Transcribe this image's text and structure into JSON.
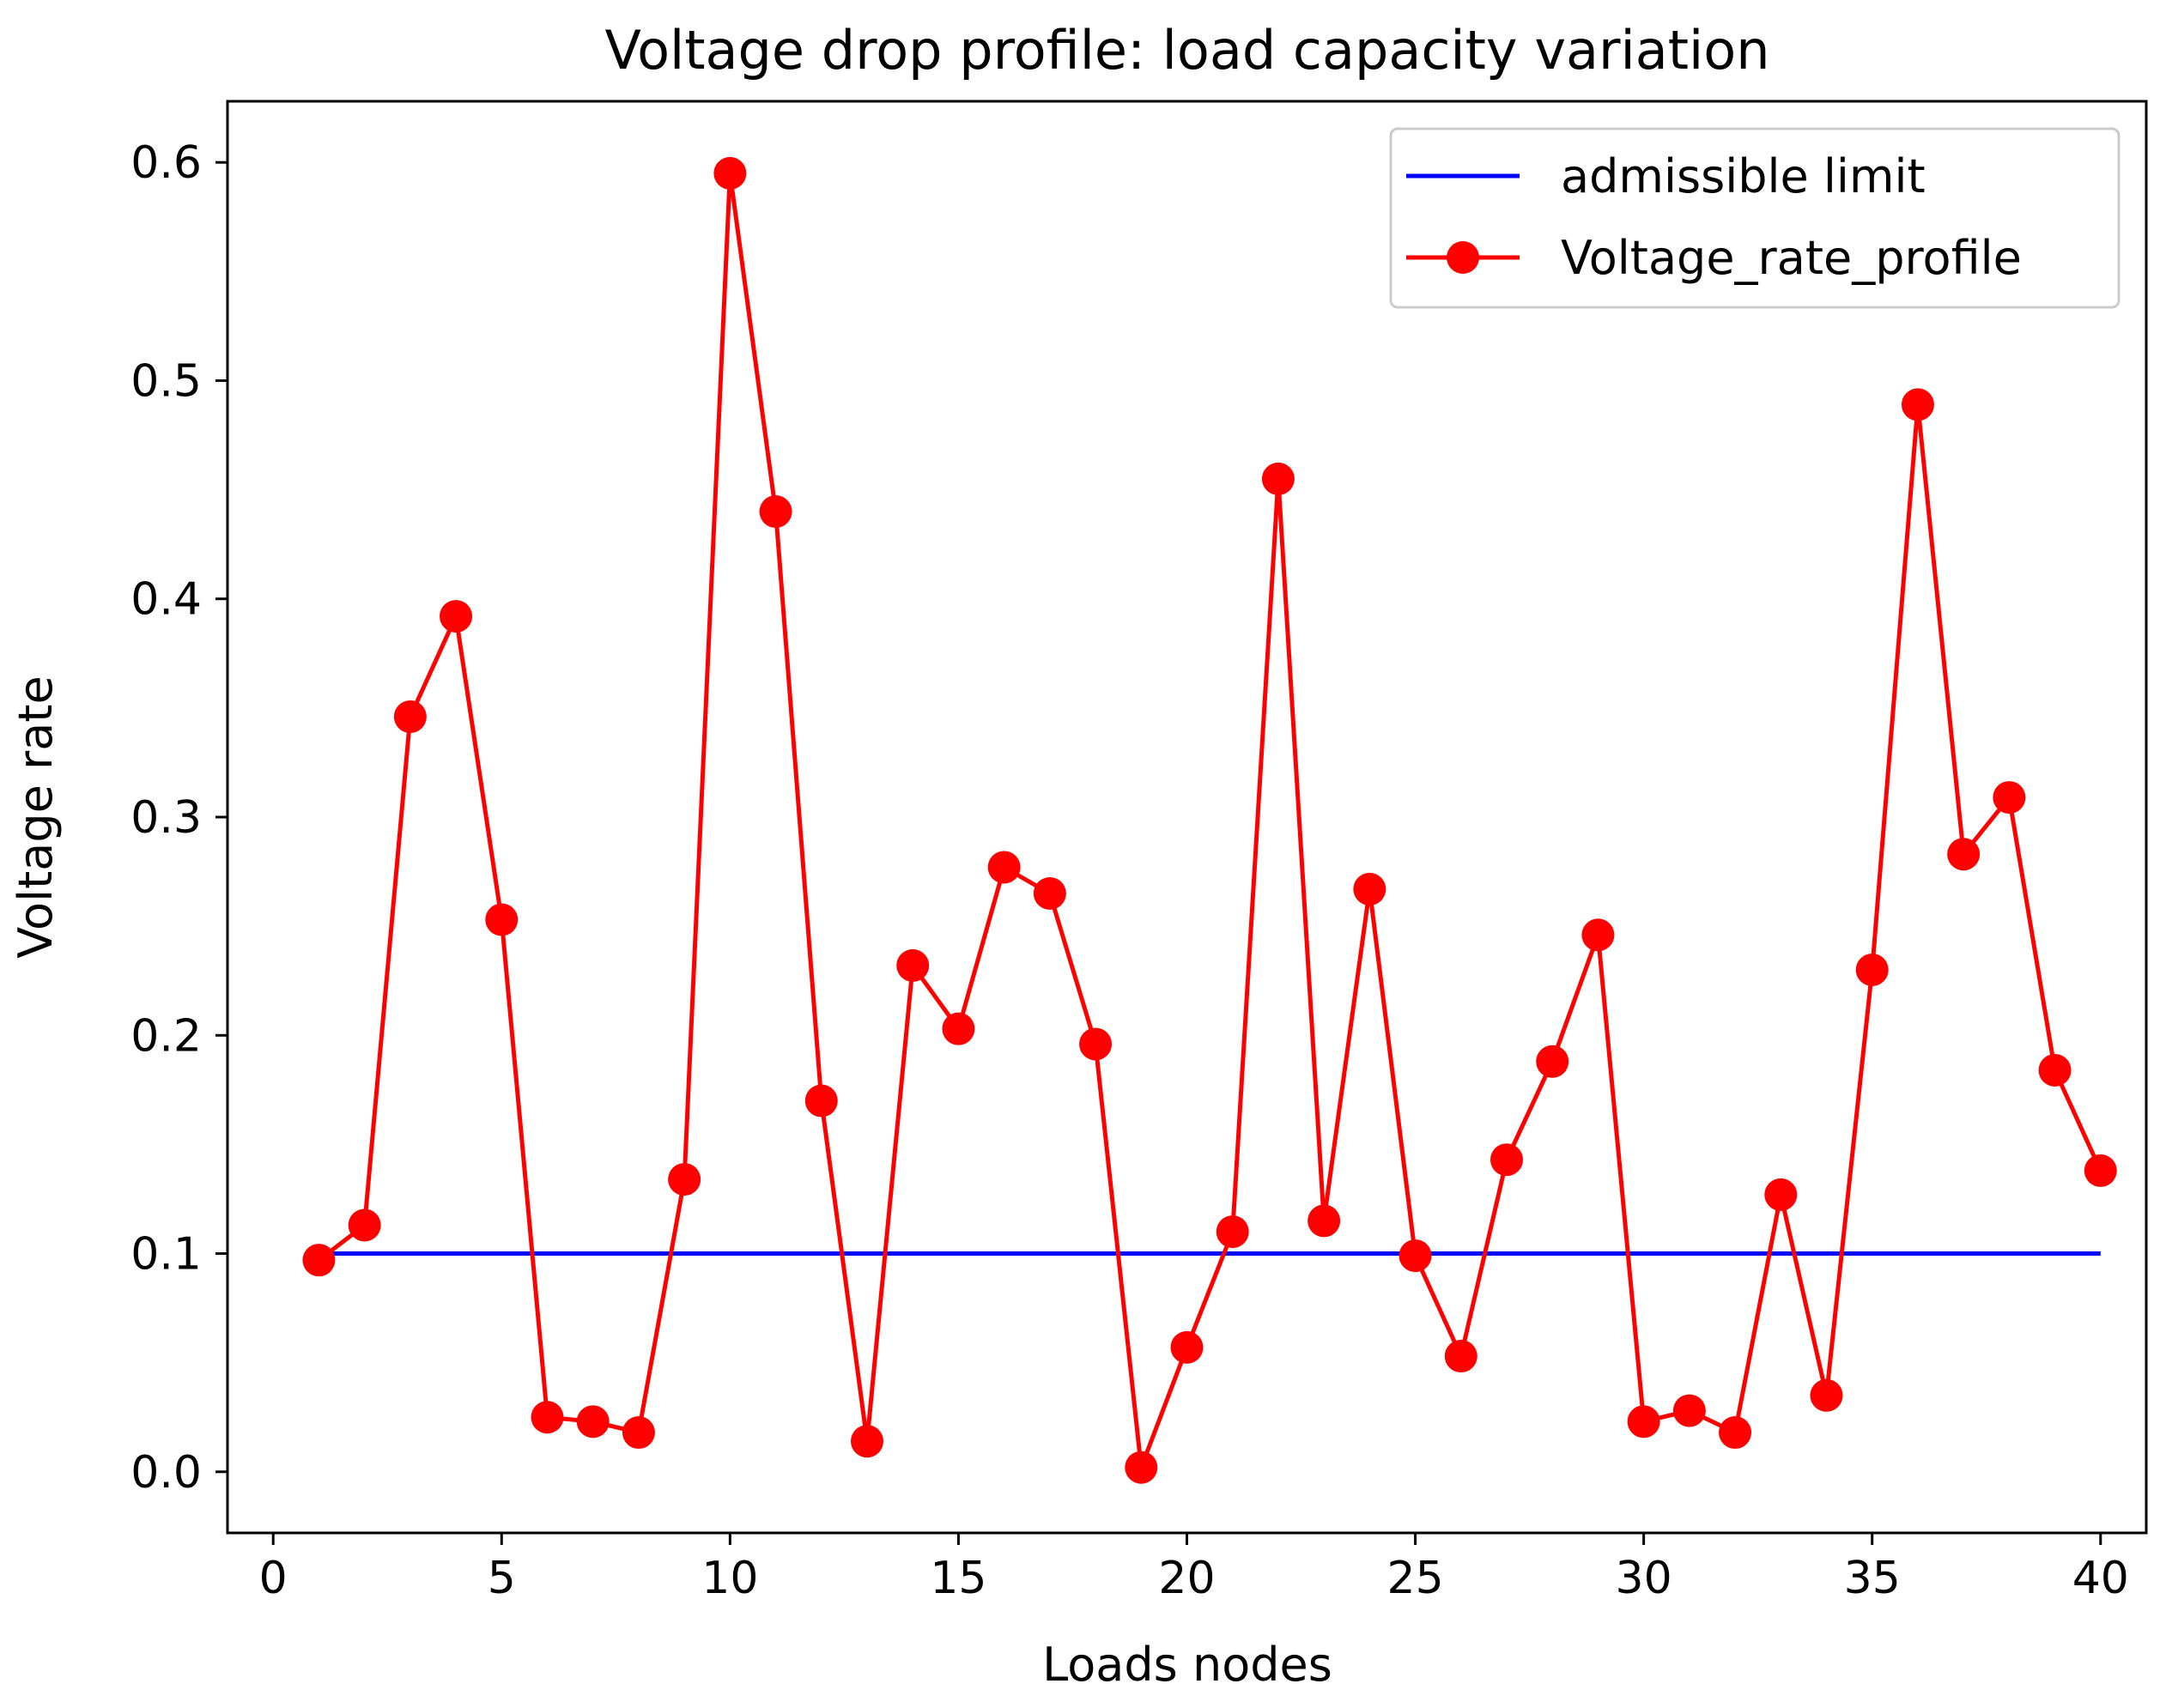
{
  "chart_data": {
    "type": "line",
    "title": "Voltage drop profile: load capacity variation",
    "xlabel": "Loads nodes",
    "ylabel": "Voltage rate",
    "xlim": [
      -1,
      41
    ],
    "ylim": [
      -0.028,
      0.628
    ],
    "xticks": [
      0,
      5,
      10,
      15,
      20,
      25,
      30,
      35,
      40
    ],
    "xtick_labels": [
      "0",
      "5",
      "10",
      "15",
      "20",
      "25",
      "30",
      "35",
      "40"
    ],
    "yticks": [
      0.0,
      0.1,
      0.2,
      0.3,
      0.4,
      0.5,
      0.6
    ],
    "ytick_labels": [
      "0.0",
      "0.1",
      "0.2",
      "0.3",
      "0.4",
      "0.5",
      "0.6"
    ],
    "grid": false,
    "legend_position": "top-right",
    "series": [
      {
        "name": "admissible limit",
        "color": "#0000ff",
        "marker": "none",
        "x": [
          1,
          40
        ],
        "values": [
          0.1,
          0.1
        ]
      },
      {
        "name": "Voltage_rate_profile",
        "color": "#ff0000",
        "marker": "circle",
        "x": [
          1,
          2,
          3,
          4,
          5,
          6,
          7,
          8,
          9,
          10,
          11,
          12,
          13,
          14,
          15,
          16,
          17,
          18,
          19,
          20,
          21,
          22,
          23,
          24,
          25,
          26,
          27,
          28,
          29,
          30,
          31,
          32,
          33,
          34,
          35,
          36,
          37,
          38,
          39,
          40
        ],
        "values": [
          0.097,
          0.113,
          0.346,
          0.392,
          0.253,
          0.025,
          0.023,
          0.018,
          0.134,
          0.595,
          0.44,
          0.17,
          0.014,
          0.232,
          0.203,
          0.277,
          0.265,
          0.196,
          0.002,
          0.057,
          0.11,
          0.455,
          0.115,
          0.267,
          0.099,
          0.053,
          0.143,
          0.188,
          0.246,
          0.023,
          0.028,
          0.018,
          0.127,
          0.035,
          0.23,
          0.489,
          0.283,
          0.309,
          0.184,
          0.138
        ]
      }
    ]
  }
}
